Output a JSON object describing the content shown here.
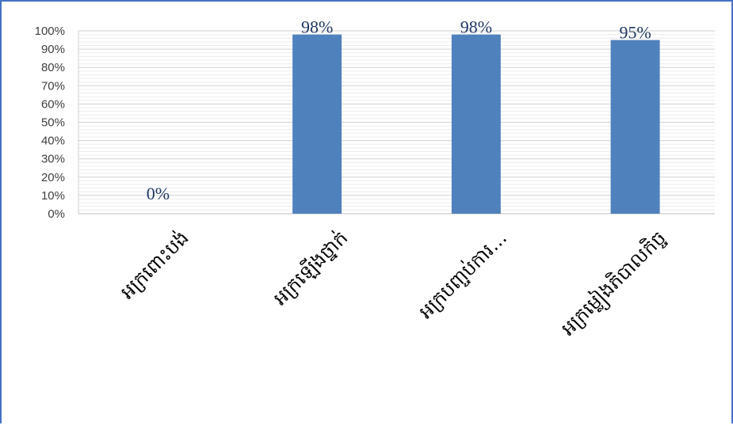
{
  "chart_data": {
    "type": "bar",
    "categories": [
      "អក្រពោះបង់",
      "អក្រឡើងថ្នាក់",
      "អក្របញ្ចប់ការ...",
      "អក្រម្លៀងភិបាលកិច្ច"
    ],
    "values": [
      0,
      98,
      98,
      95
    ],
    "data_labels": [
      "0%",
      "98%",
      "98%",
      "95%"
    ],
    "y_ticks": [
      "0%",
      "10%",
      "20%",
      "30%",
      "40%",
      "50%",
      "60%",
      "70%",
      "80%",
      "90%",
      "100%"
    ],
    "ylim": [
      0,
      100
    ],
    "grid": true,
    "bar_color": "#4f81bd",
    "title": "",
    "xlabel": "",
    "ylabel": ""
  }
}
